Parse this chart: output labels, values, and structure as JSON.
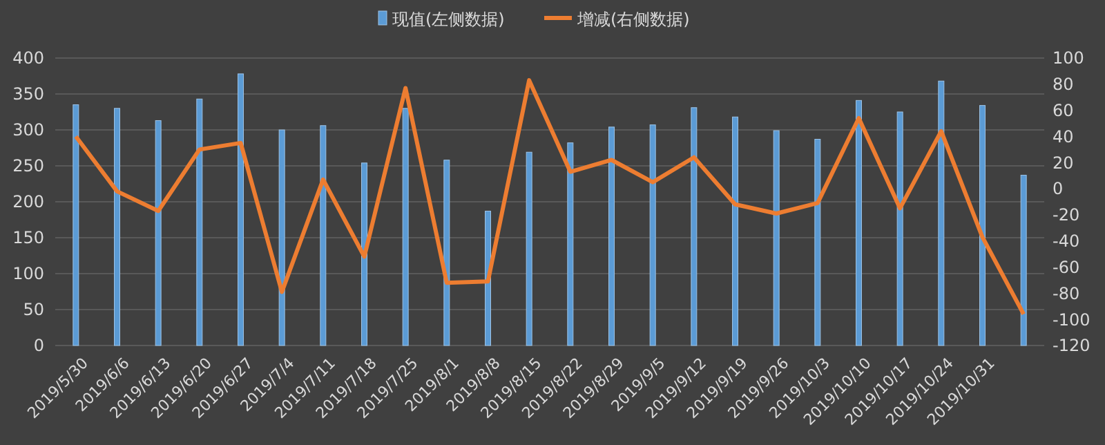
{
  "chart_data": {
    "type": "bar",
    "categories": [
      "2019/5/30",
      "2019/6/6",
      "2019/6/13",
      "2019/6/20",
      "2019/6/27",
      "2019/7/4",
      "2019/7/11",
      "2019/7/18",
      "2019/7/25",
      "2019/8/1",
      "2019/8/8",
      "2019/8/15",
      "2019/8/22",
      "2019/8/29",
      "2019/9/5",
      "2019/9/12",
      "2019/9/19",
      "2019/9/26",
      "2019/10/3",
      "2019/10/10",
      "2019/10/17",
      "2019/10/24",
      "2019/10/31",
      null
    ],
    "series": [
      {
        "name": "现值(左侧数据)",
        "color": "#5b9bd5",
        "values": [
          335,
          330,
          313,
          343,
          378,
          300,
          306,
          254,
          330,
          258,
          187,
          269,
          282,
          304,
          307,
          331,
          318,
          299,
          287,
          341,
          325,
          368,
          334,
          237
        ]
      },
      {
        "name": "增减(右侧数据)",
        "type": "line",
        "axis": "y2",
        "color": "#ed7d31",
        "values": [
          40,
          -2,
          -17,
          30,
          35,
          -79,
          7,
          -52,
          77,
          -72,
          -71,
          83,
          13,
          22,
          5,
          24,
          -12,
          -19,
          -11,
          54,
          -15,
          44,
          -37,
          -96
        ]
      }
    ],
    "ylim": [
      0,
      400
    ],
    "yticks": [
      0,
      50,
      100,
      150,
      200,
      250,
      300,
      350,
      400
    ],
    "y2lim": [
      -120,
      100
    ],
    "y2ticks": [
      -120,
      -100,
      -80,
      -60,
      -40,
      -20,
      0,
      20,
      40,
      60,
      80,
      100
    ],
    "grid": "y",
    "legend": "top",
    "marker": "none",
    "line_style": "solid"
  }
}
